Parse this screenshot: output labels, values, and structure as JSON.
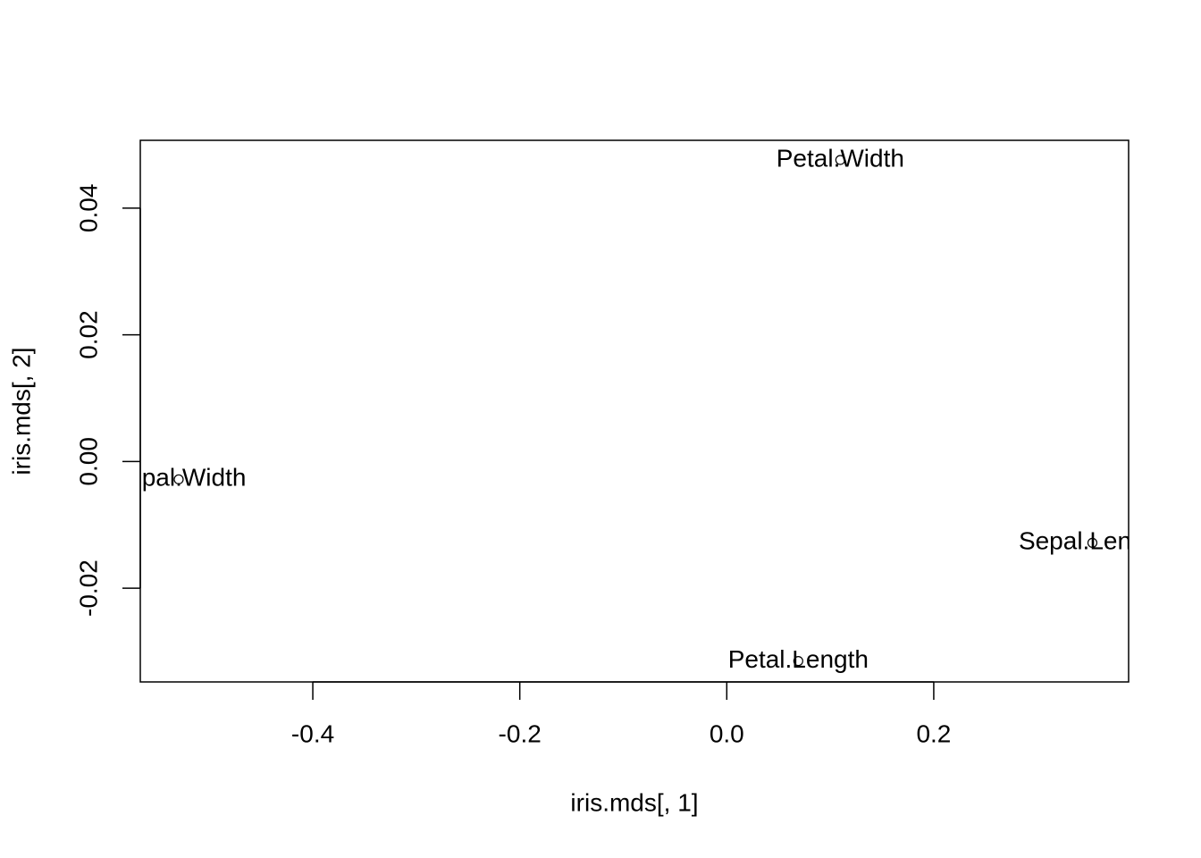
{
  "chart_data": {
    "type": "scatter",
    "x_label": "iris.mds[, 1]",
    "y_label": "iris.mds[, 2]",
    "point_labels": [
      "Sepal.Length",
      "Sepal.Width",
      "Petal.Length",
      "Petal.Width"
    ],
    "x": [
      0.3533,
      -0.5296,
      0.0691,
      0.1097
    ],
    "y": [
      -0.01284,
      -0.00282,
      -0.0315,
      0.0476
    ],
    "xlim": [
      -0.5667,
      0.3883
    ],
    "ylim": [
      -0.0348,
      0.0507
    ],
    "xticks": [
      -0.4,
      -0.2,
      {
        "value": 0,
        "label": "0.0"
      },
      0.2
    ],
    "yticks": [
      -0.02,
      {
        "value": 0,
        "label": "0.00"
      },
      0.02,
      0.04
    ],
    "color": "#000000"
  }
}
